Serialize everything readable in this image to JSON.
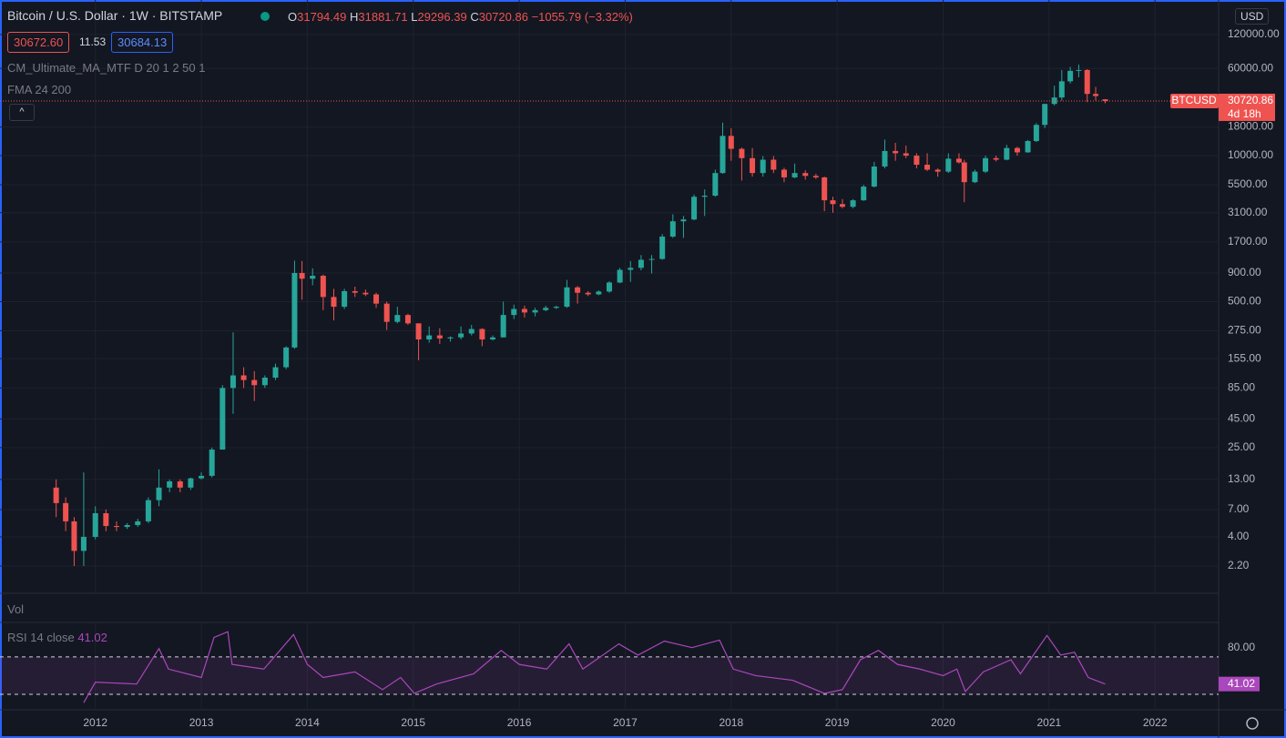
{
  "header": {
    "symbol": "Bitcoin / U.S. Dollar · 1W · BITSTAMP",
    "ohlc_labels": [
      "O",
      "H",
      "L",
      "C"
    ],
    "change": "−1055.79 (−3.32%)",
    "bid": "30672.60",
    "spread": "11.53",
    "ask": "30684.13",
    "indicators": [
      "CM_Ultimate_MA_MTF D 20 1 2 50 1",
      "FMA 24 200"
    ],
    "volume": "Vol",
    "rsi_title": "RSI 14 close",
    "currency": "USD",
    "symbol_tag": "BTCUSD",
    "countdown": "4d 18h"
  },
  "chart_data": [
    {
      "type": "candlestick",
      "log_scale": true,
      "grid": true,
      "up_color": "#26a69a",
      "down_color": "#ef5350",
      "xlim": [
        2011.1,
        2022.6
      ],
      "xticks": [
        2012,
        2013,
        2014,
        2015,
        2016,
        2017,
        2018,
        2019,
        2020,
        2021,
        2022
      ],
      "ylim": [
        1.256,
        244000
      ],
      "yticks": [
        {
          "value": 2.2,
          "label": "2.20"
        },
        {
          "value": 4,
          "label": "4.00"
        },
        {
          "value": 7,
          "label": "7.00"
        },
        {
          "value": 13,
          "label": "13.00"
        },
        {
          "value": 25,
          "label": "25.00"
        },
        {
          "value": 45,
          "label": "45.00"
        },
        {
          "value": 85,
          "label": "85.00"
        },
        {
          "value": 155,
          "label": "155.00"
        },
        {
          "value": 275,
          "label": "275.00"
        },
        {
          "value": 500,
          "label": "500.00"
        },
        {
          "value": 900,
          "label": "900.00"
        },
        {
          "value": 1700,
          "label": "1700.00"
        },
        {
          "value": 3100,
          "label": "3100.00"
        },
        {
          "value": 5500,
          "label": "5500.00"
        },
        {
          "value": 10000,
          "label": "10000.00"
        },
        {
          "value": 18000,
          "label": "18000.00"
        },
        {
          "value": 60000,
          "label": "60000.00"
        },
        {
          "value": 120000,
          "label": "120000.00"
        }
      ],
      "x": [
        2011.63,
        2011.72,
        2011.8,
        2011.89,
        2012.0,
        2012.1,
        2012.2,
        2012.3,
        2012.4,
        2012.5,
        2012.6,
        2012.7,
        2012.8,
        2012.9,
        2013.0,
        2013.1,
        2013.2,
        2013.3,
        2013.4,
        2013.5,
        2013.6,
        2013.7,
        2013.8,
        2013.88,
        2013.95,
        2014.05,
        2014.15,
        2014.25,
        2014.35,
        2014.45,
        2014.55,
        2014.65,
        2014.75,
        2014.85,
        2014.95,
        2015.05,
        2015.15,
        2015.25,
        2015.35,
        2015.45,
        2015.55,
        2015.65,
        2015.75,
        2015.85,
        2015.95,
        2016.05,
        2016.15,
        2016.25,
        2016.35,
        2016.45,
        2016.55,
        2016.65,
        2016.75,
        2016.85,
        2016.95,
        2017.05,
        2017.15,
        2017.25,
        2017.35,
        2017.45,
        2017.55,
        2017.65,
        2017.75,
        2017.85,
        2017.92,
        2018.0,
        2018.1,
        2018.2,
        2018.3,
        2018.4,
        2018.5,
        2018.6,
        2018.7,
        2018.8,
        2018.88,
        2018.96,
        2019.05,
        2019.15,
        2019.25,
        2019.35,
        2019.45,
        2019.55,
        2019.65,
        2019.75,
        2019.85,
        2019.95,
        2020.05,
        2020.15,
        2020.2,
        2020.3,
        2020.4,
        2020.5,
        2020.6,
        2020.7,
        2020.8,
        2020.88,
        2020.96,
        2021.05,
        2021.12,
        2021.2,
        2021.28,
        2021.36,
        2021.44,
        2021.53
      ],
      "open": [
        11,
        8,
        5.5,
        3,
        4,
        6.5,
        5,
        4.9,
        5.1,
        5.5,
        8.5,
        11,
        12.5,
        11,
        13.3,
        14,
        24,
        85,
        110,
        100,
        90,
        105,
        130,
        195,
        900,
        800,
        850,
        550,
        450,
        620,
        600,
        580,
        480,
        330,
        380,
        320,
        230,
        250,
        235,
        240,
        260,
        285,
        230,
        240,
        380,
        430,
        400,
        420,
        440,
        450,
        670,
        600,
        580,
        615,
        740,
        960,
        1000,
        1180,
        1200,
        1900,
        2600,
        2700,
        4300,
        4400,
        7000,
        15000,
        11500,
        9500,
        7000,
        9200,
        7500,
        6400,
        7000,
        6600,
        6400,
        4000,
        3700,
        3500,
        4000,
        5300,
        8000,
        11000,
        10500,
        10000,
        8300,
        7500,
        7200,
        9400,
        8700,
        5800,
        7200,
        9500,
        9200,
        11700,
        10700,
        13500,
        18800,
        28900,
        33000,
        46000,
        57000,
        58000,
        35500,
        31794.49
      ],
      "high": [
        13,
        9,
        6,
        15,
        7.5,
        7,
        5.5,
        5.3,
        5.8,
        9,
        16,
        13,
        13,
        13.5,
        15,
        25,
        90,
        266,
        130,
        120,
        110,
        140,
        200,
        1160,
        1150,
        990,
        870,
        650,
        650,
        680,
        640,
        600,
        500,
        450,
        390,
        320,
        300,
        290,
        245,
        300,
        310,
        290,
        250,
        500,
        470,
        460,
        440,
        460,
        460,
        780,
        690,
        620,
        630,
        760,
        1000,
        1150,
        1300,
        1300,
        2000,
        3000,
        2900,
        4500,
        5000,
        7500,
        19700,
        17500,
        11800,
        11700,
        9900,
        9900,
        7800,
        8500,
        7400,
        6900,
        6500,
        4300,
        4100,
        4100,
        5500,
        8800,
        13900,
        13000,
        12300,
        10500,
        10500,
        7700,
        10500,
        10500,
        9200,
        7500,
        10000,
        10000,
        12500,
        12000,
        13800,
        19500,
        29000,
        42000,
        58000,
        61800,
        64900,
        59000,
        41000,
        31881.71
      ],
      "low": [
        6,
        4.5,
        2.2,
        2.2,
        3.8,
        4.5,
        4.5,
        4.7,
        4.9,
        5.3,
        7.5,
        10,
        10,
        10.5,
        13,
        13.5,
        24,
        50,
        85,
        65,
        85,
        100,
        125,
        190,
        520,
        700,
        420,
        340,
        430,
        550,
        560,
        440,
        280,
        320,
        310,
        150,
        215,
        210,
        220,
        230,
        250,
        200,
        225,
        240,
        350,
        360,
        370,
        410,
        430,
        440,
        480,
        560,
        570,
        600,
        730,
        750,
        950,
        890,
        1180,
        1850,
        1850,
        2650,
        2900,
        4300,
        6900,
        9000,
        6000,
        6500,
        6500,
        7000,
        5800,
        6300,
        6100,
        6200,
        3200,
        3100,
        3400,
        3400,
        3950,
        5200,
        7700,
        9000,
        9500,
        7700,
        7300,
        6500,
        7000,
        8500,
        3850,
        5700,
        7000,
        8900,
        9100,
        10000,
        10600,
        13200,
        17600,
        28000,
        31000,
        44000,
        50000,
        30000,
        31000,
        29296.39
      ],
      "close": [
        8,
        5.5,
        3,
        4,
        6.5,
        5,
        4.9,
        5.1,
        5.5,
        8.5,
        11,
        12.5,
        11,
        13.3,
        14,
        24,
        85,
        110,
        100,
        90,
        105,
        130,
        195,
        900,
        800,
        850,
        550,
        450,
        620,
        600,
        580,
        480,
        330,
        380,
        320,
        230,
        250,
        235,
        240,
        260,
        285,
        230,
        240,
        380,
        430,
        400,
        420,
        440,
        450,
        670,
        600,
        580,
        615,
        740,
        960,
        1000,
        1180,
        1200,
        1900,
        2600,
        2700,
        4300,
        4400,
        7000,
        15000,
        11500,
        9500,
        7000,
        9200,
        7500,
        6400,
        7000,
        6600,
        6400,
        4000,
        3700,
        3500,
        4000,
        5300,
        8000,
        11000,
        10500,
        10000,
        8300,
        7500,
        7200,
        9400,
        8700,
        5800,
        7200,
        9500,
        9200,
        11700,
        10700,
        13500,
        18800,
        28900,
        33000,
        46000,
        57000,
        58000,
        35500,
        34000,
        30720.86
      ]
    },
    {
      "type": "line",
      "color": "#ab47bc",
      "xlim": [
        2011.1,
        2022.6
      ],
      "ylim": [
        13.4,
        106
      ],
      "bands": [
        30,
        70
      ],
      "yticks": [
        {
          "value": 80,
          "label": "80.00"
        }
      ],
      "x": [
        2011.89,
        2012.0,
        2012.39,
        2012.6,
        2012.69,
        2013.0,
        2013.12,
        2013.25,
        2013.29,
        2013.59,
        2013.87,
        2014.0,
        2014.15,
        2014.45,
        2014.71,
        2014.88,
        2015.01,
        2015.22,
        2015.57,
        2015.83,
        2016.0,
        2016.26,
        2016.47,
        2016.6,
        2016.94,
        2017.12,
        2017.37,
        2017.63,
        2017.89,
        2018.02,
        2018.23,
        2018.58,
        2018.88,
        2019.05,
        2019.22,
        2019.39,
        2019.57,
        2019.78,
        2020.0,
        2020.13,
        2020.21,
        2020.38,
        2020.64,
        2020.73,
        2020.98,
        2021.11,
        2021.24,
        2021.37,
        2021.53
      ],
      "values": [
        21,
        43,
        41,
        79,
        57,
        48,
        91,
        97,
        62,
        57,
        94,
        62,
        48,
        54,
        35,
        48,
        31,
        41,
        52,
        77,
        62,
        57,
        84,
        57,
        84,
        72,
        87,
        80,
        88,
        57,
        50,
        45,
        31,
        35,
        67,
        77,
        62,
        57,
        50,
        57,
        33,
        54,
        67,
        52,
        93,
        72,
        75,
        48,
        41.02
      ]
    }
  ]
}
